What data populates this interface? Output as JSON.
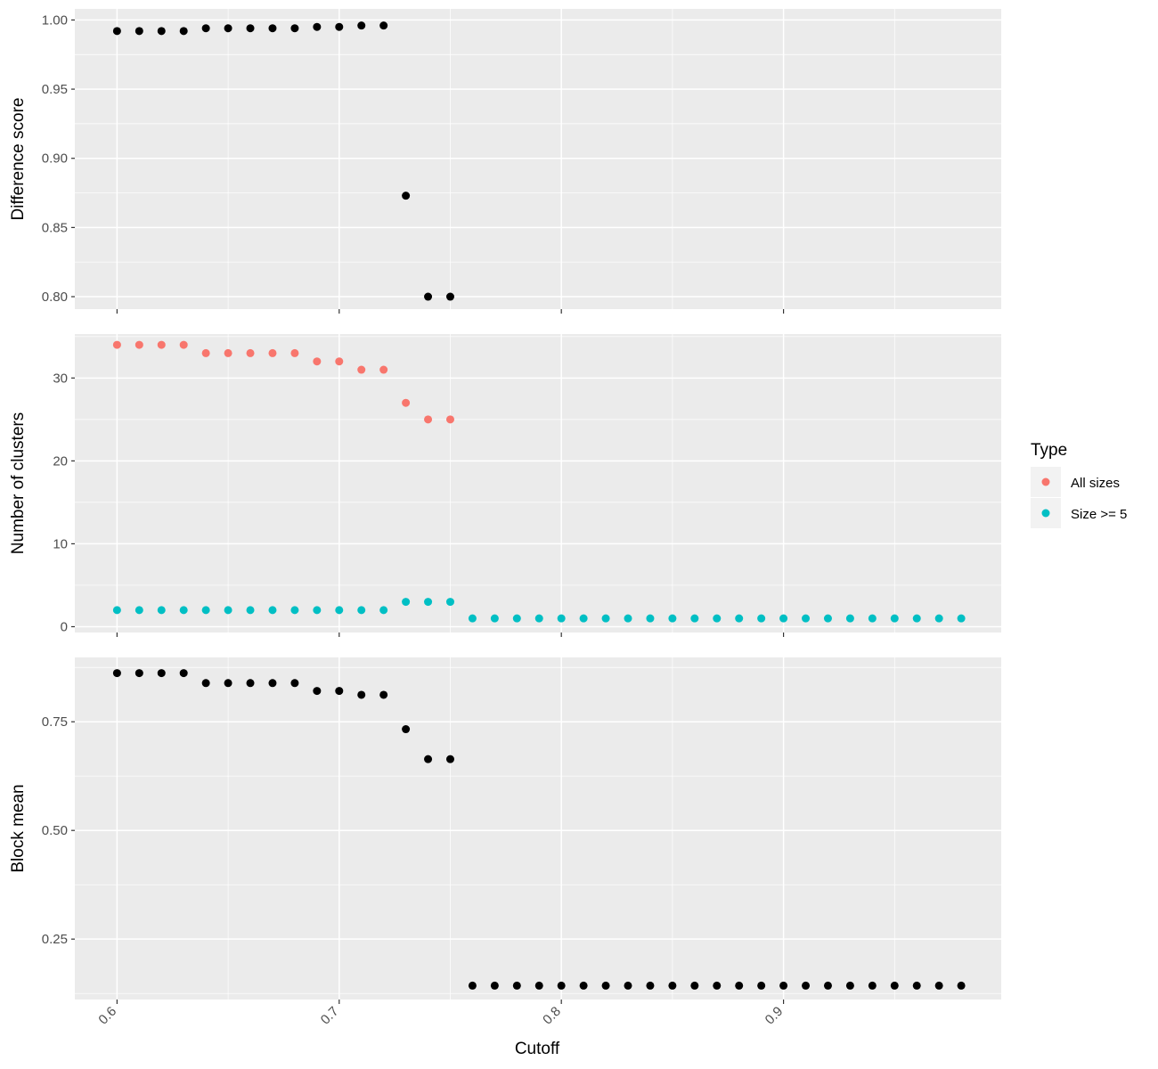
{
  "chart_data": {
    "type": "scatter",
    "xlabel": "Cutoff",
    "x_ticks": [
      0.6,
      0.7,
      0.8,
      0.9
    ],
    "x_tick_labels": [
      "0.6",
      "0.7",
      "0.8",
      "0.9"
    ],
    "xlim": [
      0.581,
      0.998
    ],
    "grid": true,
    "legend": {
      "title": "Type",
      "position": "right",
      "entries": [
        {
          "label": "All sizes",
          "color": "#F8766D"
        },
        {
          "label": "Size >= 5",
          "color": "#00BFC4"
        }
      ]
    },
    "panels": [
      {
        "id": "difference",
        "ylabel": "Difference score",
        "ylim": [
          0.791,
          1.008
        ],
        "y_ticks": [
          0.8,
          0.85,
          0.9,
          0.95,
          1.0
        ],
        "y_tick_labels": [
          "0.80",
          "0.85",
          "0.90",
          "0.95",
          "1.00"
        ],
        "series": [
          {
            "color": "#000000",
            "x": [
              0.6,
              0.61,
              0.62,
              0.63,
              0.64,
              0.65,
              0.66,
              0.67,
              0.68,
              0.69,
              0.7,
              0.71,
              0.72,
              0.73,
              0.74,
              0.75
            ],
            "y": [
              0.992,
              0.992,
              0.992,
              0.992,
              0.994,
              0.994,
              0.994,
              0.994,
              0.994,
              0.995,
              0.995,
              0.996,
              0.996,
              0.873,
              0.8,
              0.8
            ]
          }
        ]
      },
      {
        "id": "clusters",
        "ylabel": "Number of clusters",
        "ylim": [
          -0.7,
          35.3
        ],
        "y_ticks": [
          0,
          10,
          20,
          30
        ],
        "y_tick_labels": [
          "0",
          "10",
          "20",
          "30"
        ],
        "series": [
          {
            "name": "All sizes",
            "color": "#F8766D",
            "x": [
              0.6,
              0.61,
              0.62,
              0.63,
              0.64,
              0.65,
              0.66,
              0.67,
              0.68,
              0.69,
              0.7,
              0.71,
              0.72,
              0.73,
              0.74,
              0.75
            ],
            "y": [
              34,
              34,
              34,
              34,
              33,
              33,
              33,
              33,
              33,
              32,
              32,
              31,
              31,
              27,
              25,
              25
            ]
          },
          {
            "name": "Size >= 5",
            "color": "#00BFC4",
            "x": [
              0.6,
              0.61,
              0.62,
              0.63,
              0.64,
              0.65,
              0.66,
              0.67,
              0.68,
              0.69,
              0.7,
              0.71,
              0.72,
              0.73,
              0.74,
              0.75,
              0.76,
              0.77,
              0.78,
              0.79,
              0.8,
              0.81,
              0.82,
              0.83,
              0.84,
              0.85,
              0.86,
              0.87,
              0.88,
              0.89,
              0.9,
              0.91,
              0.92,
              0.93,
              0.94,
              0.95,
              0.96,
              0.97,
              0.98
            ],
            "y": [
              2,
              2,
              2,
              2,
              2,
              2,
              2,
              2,
              2,
              2,
              2,
              2,
              2,
              3,
              3,
              3,
              1,
              1,
              1,
              1,
              1,
              1,
              1,
              1,
              1,
              1,
              1,
              1,
              1,
              1,
              1,
              1,
              1,
              1,
              1,
              1,
              1,
              1,
              1
            ]
          }
        ]
      },
      {
        "id": "block",
        "ylabel": "Block mean",
        "ylim": [
          0.111,
          0.898
        ],
        "y_ticks": [
          0.25,
          0.5,
          0.75
        ],
        "y_tick_labels": [
          "0.25",
          "0.50",
          "0.75"
        ],
        "series": [
          {
            "color": "#000000",
            "x": [
              0.6,
              0.61,
              0.62,
              0.63,
              0.64,
              0.65,
              0.66,
              0.67,
              0.68,
              0.69,
              0.7,
              0.71,
              0.72,
              0.73,
              0.74,
              0.75,
              0.76,
              0.77,
              0.78,
              0.79,
              0.8,
              0.81,
              0.82,
              0.83,
              0.84,
              0.85,
              0.86,
              0.87,
              0.88,
              0.89,
              0.9,
              0.91,
              0.92,
              0.93,
              0.94,
              0.95,
              0.96,
              0.97,
              0.98
            ],
            "y": [
              0.862,
              0.862,
              0.862,
              0.862,
              0.839,
              0.839,
              0.839,
              0.839,
              0.839,
              0.821,
              0.821,
              0.812,
              0.812,
              0.733,
              0.664,
              0.664,
              0.143,
              0.143,
              0.143,
              0.143,
              0.143,
              0.143,
              0.143,
              0.143,
              0.143,
              0.143,
              0.143,
              0.143,
              0.143,
              0.143,
              0.143,
              0.143,
              0.143,
              0.143,
              0.143,
              0.143,
              0.143,
              0.143,
              0.143
            ]
          }
        ]
      }
    ]
  }
}
